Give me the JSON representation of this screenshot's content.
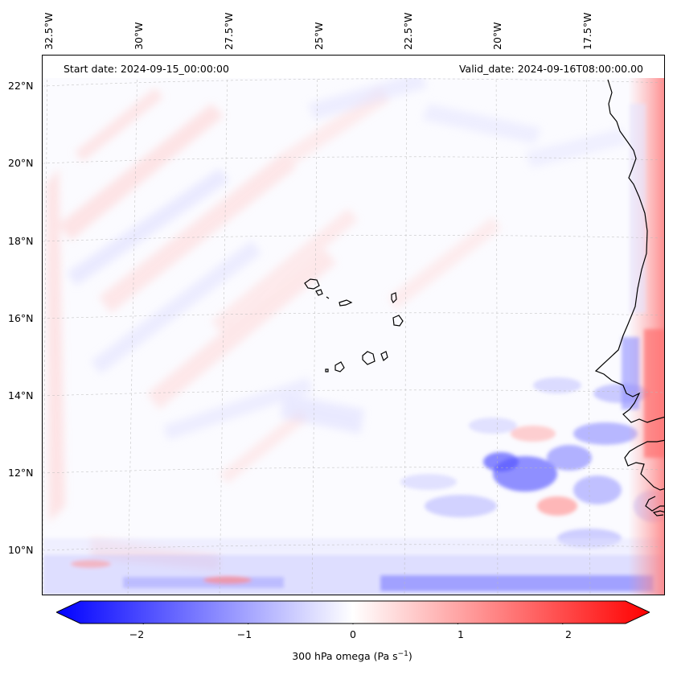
{
  "map": {
    "start_date": "Start date: 2024-09-15_00:00:00",
    "valid_date": "Valid_date: 2024-09-16T08:00:00.00",
    "lon_labels": [
      "32.5°W",
      "30°W",
      "27.5°W",
      "25°W",
      "22.5°W",
      "20°W",
      "17.5°W"
    ],
    "lat_labels": [
      "22°N",
      "20°N",
      "18°N",
      "16°N",
      "14°N",
      "12°N",
      "10°N"
    ],
    "projection_extent": {
      "lon_min": -32.7,
      "lon_max": -15.5,
      "lat_min": 8.8,
      "lat_max": 22.8
    },
    "graticule": true,
    "field": "300 hPa omega"
  },
  "colorbar": {
    "label": "300 hPa omega (Pa s",
    "label_sup": "−1",
    "label_close": ")",
    "ticks": [
      "−2",
      "−1",
      "0",
      "1",
      "2"
    ],
    "tick_values": [
      -2,
      -1,
      0,
      1,
      2
    ],
    "range": [
      -2.6,
      2.6
    ],
    "extend": "both",
    "colormap": "bwr",
    "colors": {
      "negative": "#0000ff",
      "neutral": "#ffffff",
      "positive": "#ff0000"
    }
  }
}
